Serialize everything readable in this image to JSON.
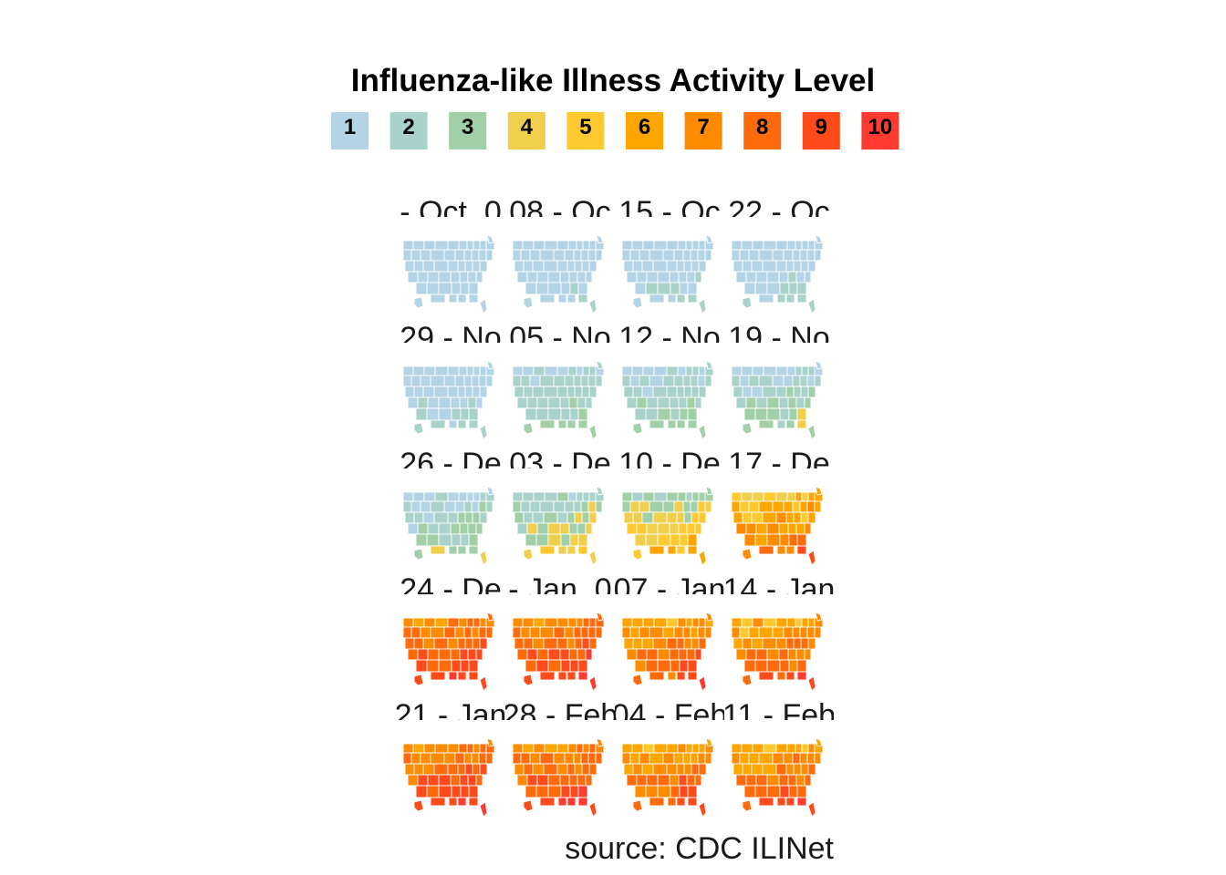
{
  "chart_data": {
    "type": "choropleth-small-multiples",
    "title": "Influenza-like Illness Activity Level",
    "legend": {
      "levels": [
        {
          "label": "1",
          "color": "#B3D4E4"
        },
        {
          "label": "2",
          "color": "#A8D2CA"
        },
        {
          "label": "3",
          "color": "#A1CFA7"
        },
        {
          "label": "4",
          "color": "#EFCF4B"
        },
        {
          "label": "5",
          "color": "#FFCA30"
        },
        {
          "label": "6",
          "color": "#FFA500"
        },
        {
          "label": "7",
          "color": "#FF8C00"
        },
        {
          "label": "8",
          "color": "#FF6A0A"
        },
        {
          "label": "9",
          "color": "#FF4A1C"
        },
        {
          "label": "10",
          "color": "#FF3B30"
        }
      ]
    },
    "caption": "source: CDC ILINet",
    "panels": [
      {
        "label": "- Oct. 0",
        "base": 1,
        "mix": 0.15
      },
      {
        "label": "08 - Oc",
        "base": 1,
        "mix": 0.25
      },
      {
        "label": "15 - Oc",
        "base": 1,
        "mix": 0.3
      },
      {
        "label": "22 - Oc",
        "base": 1,
        "mix": 0.4
      },
      {
        "label": "29 - No",
        "base": 1,
        "mix": 0.55
      },
      {
        "label": "05 - No",
        "base": 2,
        "mix": 0.45
      },
      {
        "label": "12 - No",
        "base": 2,
        "mix": 0.55
      },
      {
        "label": "19 - No",
        "base": 2,
        "mix": 0.65
      },
      {
        "label": "26 - De",
        "base": 2,
        "mix": 0.8
      },
      {
        "label": "03 - De",
        "base": 3,
        "mix": 0.8
      },
      {
        "label": "10 - De",
        "base": 4,
        "mix": 0.9
      },
      {
        "label": "17 - De",
        "base": 6,
        "mix": 0.9
      },
      {
        "label": "24 - De",
        "base": 8,
        "mix": 0.8
      },
      {
        "label": "- Jan. 0",
        "base": 8,
        "mix": 0.8
      },
      {
        "label": "07 - Jan",
        "base": 7,
        "mix": 0.8
      },
      {
        "label": "14 - Jan",
        "base": 7,
        "mix": 0.85
      },
      {
        "label": "21 - Jan",
        "base": 8,
        "mix": 0.75
      },
      {
        "label": "28 - Feb",
        "base": 8,
        "mix": 0.8
      },
      {
        "label": "04 - Feb",
        "base": 7,
        "mix": 0.85
      },
      {
        "label": "11 - Feb",
        "base": 7,
        "mix": 0.9
      }
    ]
  }
}
